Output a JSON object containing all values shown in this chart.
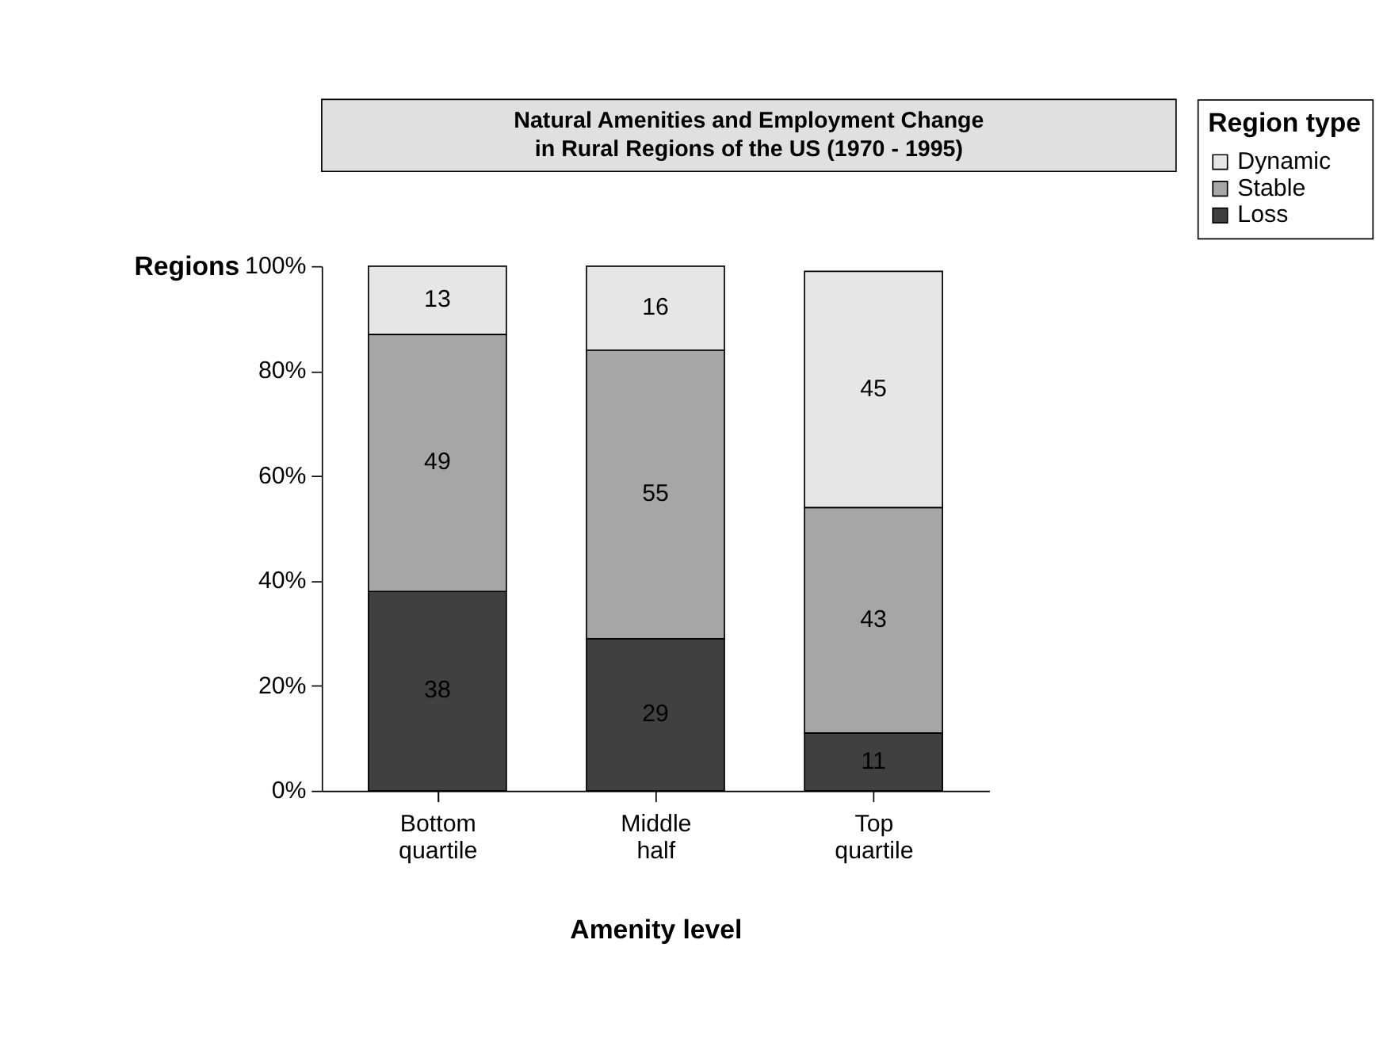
{
  "chart_data": {
    "type": "bar",
    "stacked": true,
    "title": "Natural Amenities and Employment Change\nin Rural Regions of the US        (1970 - 1995)",
    "xlabel": "Amenity level",
    "ylabel": "Regions",
    "legend_title": "Region type",
    "categories": [
      "Bottom quartile",
      "Middle half",
      "Top quartile"
    ],
    "series": [
      {
        "name": "Loss",
        "color": "#404040",
        "values": [
          38,
          29,
          11
        ]
      },
      {
        "name": "Stable",
        "color": "#a6a6a6",
        "values": [
          49,
          55,
          43
        ]
      },
      {
        "name": "Dynamic",
        "color": "#e6e6e6",
        "values": [
          13,
          16,
          45
        ]
      }
    ],
    "ylim": [
      0,
      100
    ],
    "yticks": [
      {
        "value": 0,
        "label": "0%"
      },
      {
        "value": 20,
        "label": "20%"
      },
      {
        "value": 40,
        "label": "40%"
      },
      {
        "value": 60,
        "label": "60%"
      },
      {
        "value": 80,
        "label": "80%"
      },
      {
        "value": 100,
        "label": "100%"
      }
    ],
    "data_labels": true,
    "grid": false,
    "legend": "right"
  }
}
